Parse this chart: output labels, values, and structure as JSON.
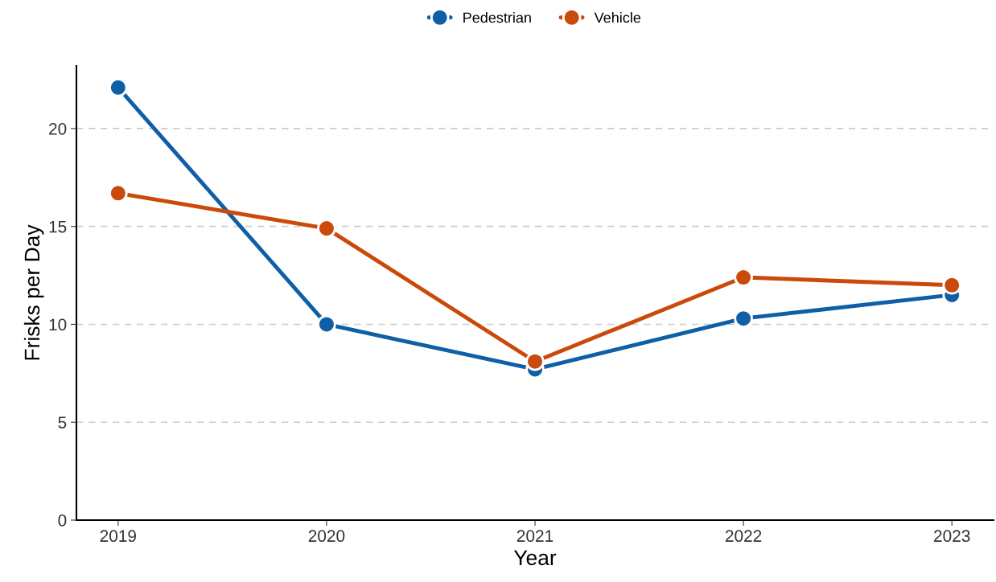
{
  "chart_data": {
    "type": "line",
    "xlabel": "Year",
    "ylabel": "Frisks per Day",
    "x": [
      2019,
      2020,
      2021,
      2022,
      2023
    ],
    "series": [
      {
        "name": "Pedestrian",
        "color": "#0f5fa6",
        "values": [
          22.1,
          10.0,
          7.7,
          10.3,
          11.5
        ]
      },
      {
        "name": "Vehicle",
        "color": "#c94a0a",
        "values": [
          16.7,
          14.9,
          8.1,
          12.4,
          12.0
        ]
      }
    ],
    "xlim": [
      2018.8,
      2023.2
    ],
    "xticks": [
      2019,
      2020,
      2021,
      2022,
      2023
    ],
    "ylim": [
      0,
      23.2
    ],
    "yticks": [
      0,
      5,
      10,
      15,
      20
    ],
    "grid": "y",
    "legend": "top",
    "marker": "circle",
    "line_style": "solid"
  }
}
